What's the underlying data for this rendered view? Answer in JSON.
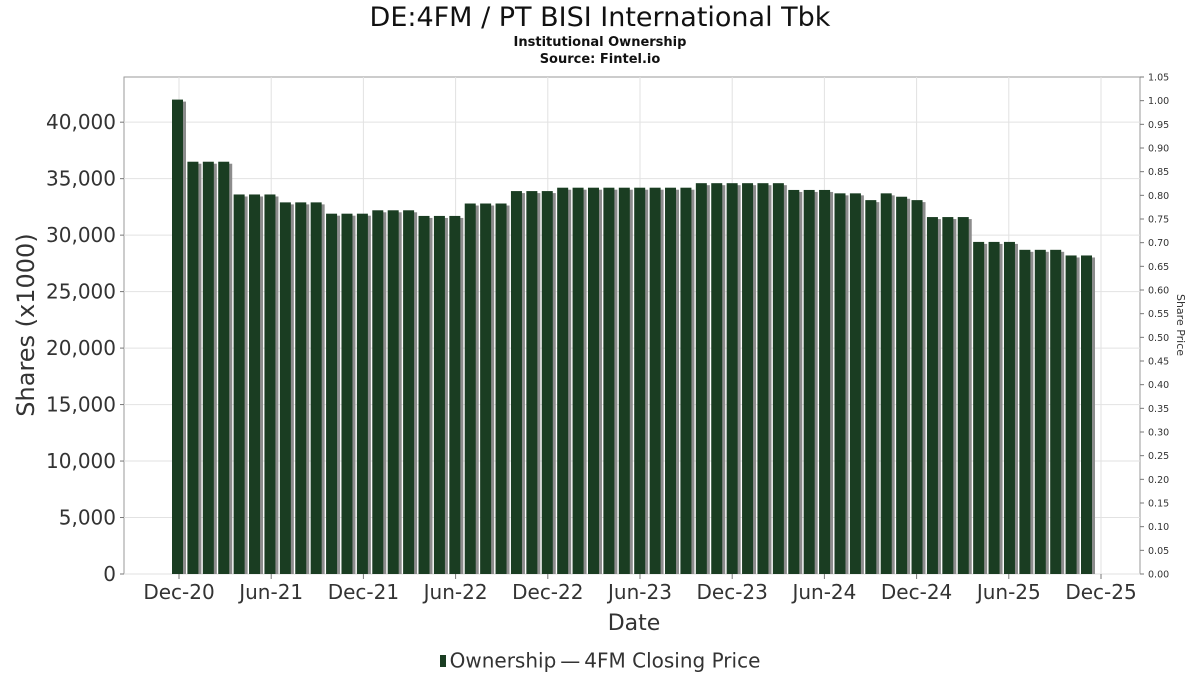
{
  "header": {
    "title": "DE:4FM / PT BISI International Tbk",
    "subtitle": "Institutional Ownership",
    "source": "Source: Fintel.io"
  },
  "legend": {
    "ownership": "Ownership",
    "price": "4FM Closing Price",
    "separator": "—"
  },
  "chart_data": {
    "type": "bar",
    "title": "DE:4FM / PT BISI International Tbk",
    "xlabel": "Date",
    "ylabel": "Shares (x1000)",
    "y2label": "Share Price",
    "ylim": [
      0,
      44000
    ],
    "y2lim": [
      0,
      1.05
    ],
    "grid": true,
    "legend_position": "bottom",
    "colors": {
      "bar": "#1a3d22",
      "bar_shadow": "#8c8c8c"
    },
    "y_ticks": [
      0,
      5000,
      10000,
      15000,
      20000,
      25000,
      30000,
      35000,
      40000
    ],
    "y_tick_labels": [
      "0",
      "5,000",
      "10,000",
      "15,000",
      "20,000",
      "25,000",
      "30,000",
      "35,000",
      "40,000"
    ],
    "y2_tick_labels": [
      "0.00",
      "0.05",
      "0.10",
      "0.15",
      "0.20",
      "0.25",
      "0.30",
      "0.35",
      "0.40",
      "0.45",
      "0.50",
      "0.55",
      "0.60",
      "0.65",
      "0.70",
      "0.75",
      "0.80",
      "0.85",
      "0.90",
      "0.95",
      "1.00",
      "1.05"
    ],
    "x_tick_labels": [
      "Dec-20",
      "Jun-21",
      "Dec-21",
      "Jun-22",
      "Dec-22",
      "Jun-23",
      "Dec-23",
      "Jun-24",
      "Dec-24",
      "Jun-25",
      "Dec-25"
    ],
    "series": [
      {
        "name": "Ownership",
        "values": [
          42000,
          36500,
          36500,
          36500,
          33600,
          33600,
          33600,
          32900,
          32900,
          32900,
          31900,
          31900,
          31900,
          32200,
          32200,
          32200,
          31700,
          31700,
          31700,
          32800,
          32800,
          32800,
          33900,
          33900,
          33900,
          34200,
          34200,
          34200,
          34200,
          34200,
          34200,
          34200,
          34200,
          34200,
          34600,
          34600,
          34600,
          34600,
          34600,
          34600,
          34000,
          34000,
          34000,
          33700,
          33700,
          33100,
          33700,
          33400,
          33100,
          31600,
          31600,
          31600,
          29400,
          29400,
          29400,
          28700,
          28700,
          28700,
          28200,
          28200
        ]
      }
    ]
  }
}
